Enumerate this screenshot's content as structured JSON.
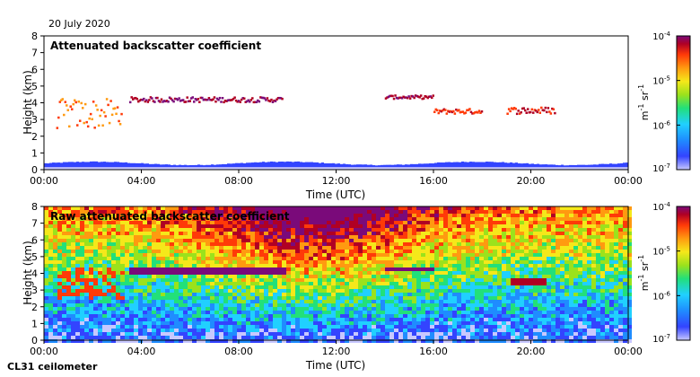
{
  "date": "20 July 2020",
  "instrument": "CL31 ceilometer",
  "chart_data": [
    {
      "type": "heatmap",
      "title": "Attenuated backscatter coefficient",
      "xlabel": "Time (UTC)",
      "ylabel": "Height (km)",
      "xlim": [
        0,
        24
      ],
      "ylim": [
        0,
        8
      ],
      "xticks": [
        0,
        4,
        8,
        12,
        16,
        20,
        24
      ],
      "xtick_labels": [
        "00:00",
        "04:00",
        "08:00",
        "12:00",
        "16:00",
        "20:00",
        "00:00"
      ],
      "yticks": [
        0,
        1,
        2,
        3,
        4,
        5,
        6,
        7,
        8
      ],
      "colorbar": {
        "unit_base": "m",
        "unit_exp": "-1",
        "unit_base2": "sr",
        "unit_exp2": "-1",
        "ticks": [
          {
            "base": "10",
            "exp": "-4",
            "value": 0.0001
          },
          {
            "base": "10",
            "exp": "-5",
            "value": 1e-05
          },
          {
            "base": "10",
            "exp": "-6",
            "value": 1e-06
          },
          {
            "base": "10",
            "exp": "-7",
            "value": 1e-07
          }
        ],
        "scale": "log"
      },
      "features": [
        {
          "name": "boundary layer",
          "t": [
            0,
            24
          ],
          "height_km": [
            0,
            0.5
          ],
          "level": 0.12
        },
        {
          "name": "early cloud",
          "t": [
            0.5,
            3.2
          ],
          "height_km": [
            2.5,
            4.3
          ],
          "level": 0.78
        },
        {
          "name": "cloud layer 1",
          "t": [
            3.5,
            9.8
          ],
          "height_km": [
            4.1,
            4.4
          ],
          "level": 0.97
        },
        {
          "name": "cloud layer 2",
          "t": [
            14,
            16
          ],
          "height_km": [
            4.3,
            4.5
          ],
          "level": 0.95
        },
        {
          "name": "cloud layer 3",
          "t": [
            16,
            18
          ],
          "height_km": [
            3.4,
            3.7
          ],
          "level": 0.85
        },
        {
          "name": "cloud layer 4",
          "t": [
            19,
            21
          ],
          "height_km": [
            3.4,
            3.8
          ],
          "level": 0.88
        }
      ]
    },
    {
      "type": "heatmap",
      "title": "Raw attenuated backscatter coefficient",
      "xlabel": "Time (UTC)",
      "ylabel": "Height (km)",
      "xlim": [
        0,
        24
      ],
      "ylim": [
        0,
        8
      ],
      "xticks": [
        0,
        4,
        8,
        12,
        16,
        20,
        24
      ],
      "xtick_labels": [
        "00:00",
        "04:00",
        "08:00",
        "12:00",
        "16:00",
        "20:00",
        "00:00"
      ],
      "yticks": [
        0,
        1,
        2,
        3,
        4,
        5,
        6,
        7,
        8
      ],
      "colorbar": {
        "unit_base": "m",
        "unit_exp": "-1",
        "unit_base2": "sr",
        "unit_exp2": "-1",
        "ticks": [
          {
            "base": "10",
            "exp": "-4",
            "value": 0.0001
          },
          {
            "base": "10",
            "exp": "-5",
            "value": 1e-05
          },
          {
            "base": "10",
            "exp": "-6",
            "value": 1e-06
          },
          {
            "base": "10",
            "exp": "-7",
            "value": 1e-07
          }
        ],
        "scale": "log"
      }
    }
  ],
  "colormap": [
    "#c8c8ff",
    "#3344ff",
    "#1f8cff",
    "#20d0ff",
    "#22e07a",
    "#9be21c",
    "#f5e81a",
    "#ff9a10",
    "#ff3a08",
    "#b00024",
    "#7a0a7a"
  ]
}
